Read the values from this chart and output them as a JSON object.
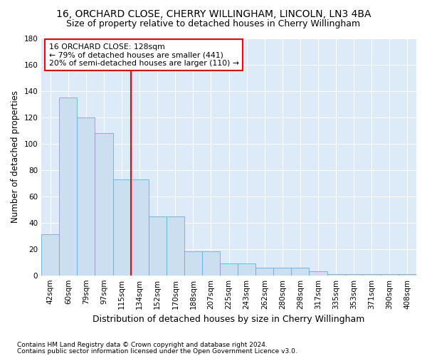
{
  "title1": "16, ORCHARD CLOSE, CHERRY WILLINGHAM, LINCOLN, LN3 4BA",
  "title2": "Size of property relative to detached houses in Cherry Willingham",
  "xlabel": "Distribution of detached houses by size in Cherry Willingham",
  "ylabel": "Number of detached properties",
  "footnote1": "Contains HM Land Registry data © Crown copyright and database right 2024.",
  "footnote2": "Contains public sector information licensed under the Open Government Licence v3.0.",
  "categories": [
    "42sqm",
    "60sqm",
    "79sqm",
    "97sqm",
    "115sqm",
    "134sqm",
    "152sqm",
    "170sqm",
    "188sqm",
    "207sqm",
    "225sqm",
    "243sqm",
    "262sqm",
    "280sqm",
    "298sqm",
    "317sqm",
    "335sqm",
    "353sqm",
    "371sqm",
    "390sqm",
    "408sqm"
  ],
  "values": [
    31,
    135,
    120,
    108,
    73,
    73,
    45,
    45,
    18,
    18,
    9,
    9,
    6,
    6,
    6,
    3,
    1,
    1,
    1,
    1,
    1
  ],
  "bar_color": "#ccdff0",
  "bar_edge_color": "#6aaed6",
  "vline_color": "red",
  "annotation_text": "16 ORCHARD CLOSE: 128sqm\n← 79% of detached houses are smaller (441)\n20% of semi-detached houses are larger (110) →",
  "annotation_box_color": "white",
  "annotation_box_edge": "red",
  "ylim": [
    0,
    180
  ],
  "plot_background": "#ddeaf7",
  "grid_color": "white",
  "title1_fontsize": 10,
  "title2_fontsize": 9,
  "tick_fontsize": 7.5,
  "ylabel_fontsize": 8.5,
  "xlabel_fontsize": 9,
  "annotation_fontsize": 7.8,
  "footnote_fontsize": 6.5
}
